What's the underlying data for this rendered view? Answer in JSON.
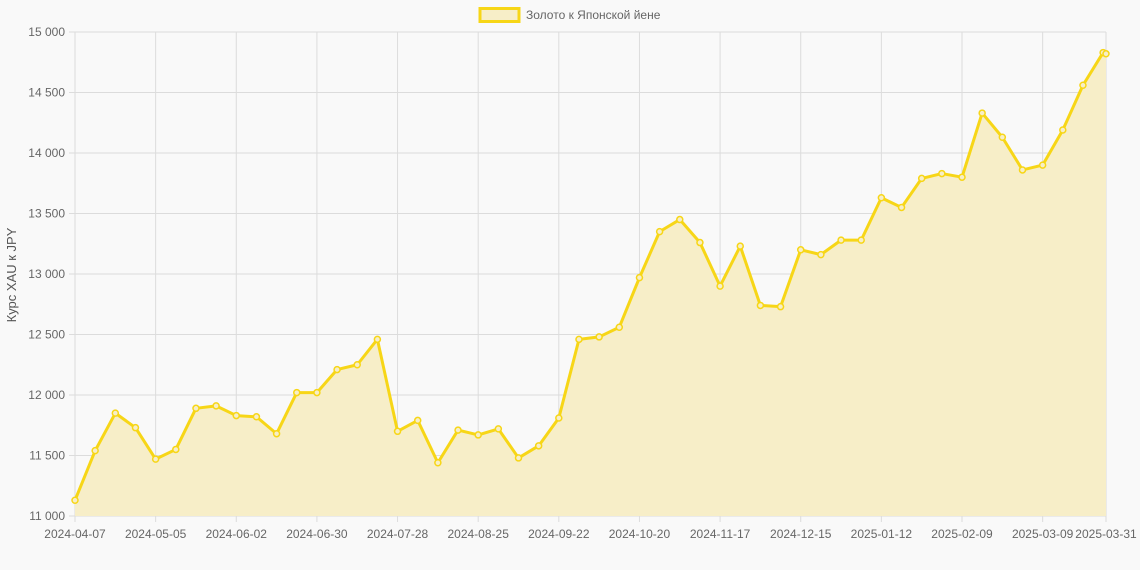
{
  "chart_data": {
    "type": "area",
    "title": "",
    "xlabel": "",
    "ylabel": "Курс XAU к JPY",
    "ylim": [
      11000,
      15000
    ],
    "y_ticks": [
      11000,
      11500,
      12000,
      12500,
      13000,
      13500,
      14000,
      14500,
      15000
    ],
    "y_tick_labels": [
      "11 000",
      "11 500",
      "12 000",
      "12 500",
      "13 000",
      "13 500",
      "14 000",
      "14 500",
      "15 000"
    ],
    "x_tick_labels": [
      "2024-04-07",
      "2024-05-05",
      "2024-06-02",
      "2024-06-30",
      "2024-07-28",
      "2024-08-25",
      "2024-09-22",
      "2024-10-20",
      "2024-11-17",
      "2024-12-15",
      "2025-01-12",
      "2025-02-09",
      "2025-03-09",
      "2025-03-31"
    ],
    "grid": true,
    "legend_position": "top",
    "colors": {
      "line": "#f7d617",
      "fill": "#f7eec8",
      "point": "#f7d617",
      "grid": "#dcdcdc"
    },
    "x": [
      "2024-04-07",
      "2024-04-14",
      "2024-04-21",
      "2024-04-28",
      "2024-05-05",
      "2024-05-12",
      "2024-05-19",
      "2024-05-26",
      "2024-06-02",
      "2024-06-09",
      "2024-06-16",
      "2024-06-23",
      "2024-06-30",
      "2024-07-07",
      "2024-07-14",
      "2024-07-21",
      "2024-07-28",
      "2024-08-04",
      "2024-08-11",
      "2024-08-18",
      "2024-08-25",
      "2024-09-01",
      "2024-09-08",
      "2024-09-15",
      "2024-09-22",
      "2024-09-29",
      "2024-10-06",
      "2024-10-13",
      "2024-10-20",
      "2024-10-27",
      "2024-11-03",
      "2024-11-10",
      "2024-11-17",
      "2024-11-24",
      "2024-12-01",
      "2024-12-08",
      "2024-12-15",
      "2024-12-22",
      "2024-12-29",
      "2025-01-05",
      "2025-01-12",
      "2025-01-19",
      "2025-01-26",
      "2025-02-02",
      "2025-02-09",
      "2025-02-16",
      "2025-02-23",
      "2025-03-02",
      "2025-03-09",
      "2025-03-16",
      "2025-03-23",
      "2025-03-30",
      "2025-03-31"
    ],
    "series": [
      {
        "name": "Золото к Японской йене",
        "values": [
          11130,
          11540,
          11850,
          11730,
          11470,
          11550,
          11890,
          11910,
          11830,
          11820,
          11680,
          12020,
          12020,
          12210,
          12250,
          12460,
          11700,
          11790,
          11440,
          11710,
          11670,
          11720,
          11480,
          11580,
          11810,
          12460,
          12480,
          12560,
          12970,
          13350,
          13450,
          13260,
          12900,
          13230,
          12740,
          12730,
          13200,
          13160,
          13280,
          13280,
          13630,
          13550,
          13790,
          13830,
          13800,
          14330,
          14130,
          13860,
          13900,
          14190,
          14560,
          14830,
          14820
        ]
      }
    ]
  }
}
